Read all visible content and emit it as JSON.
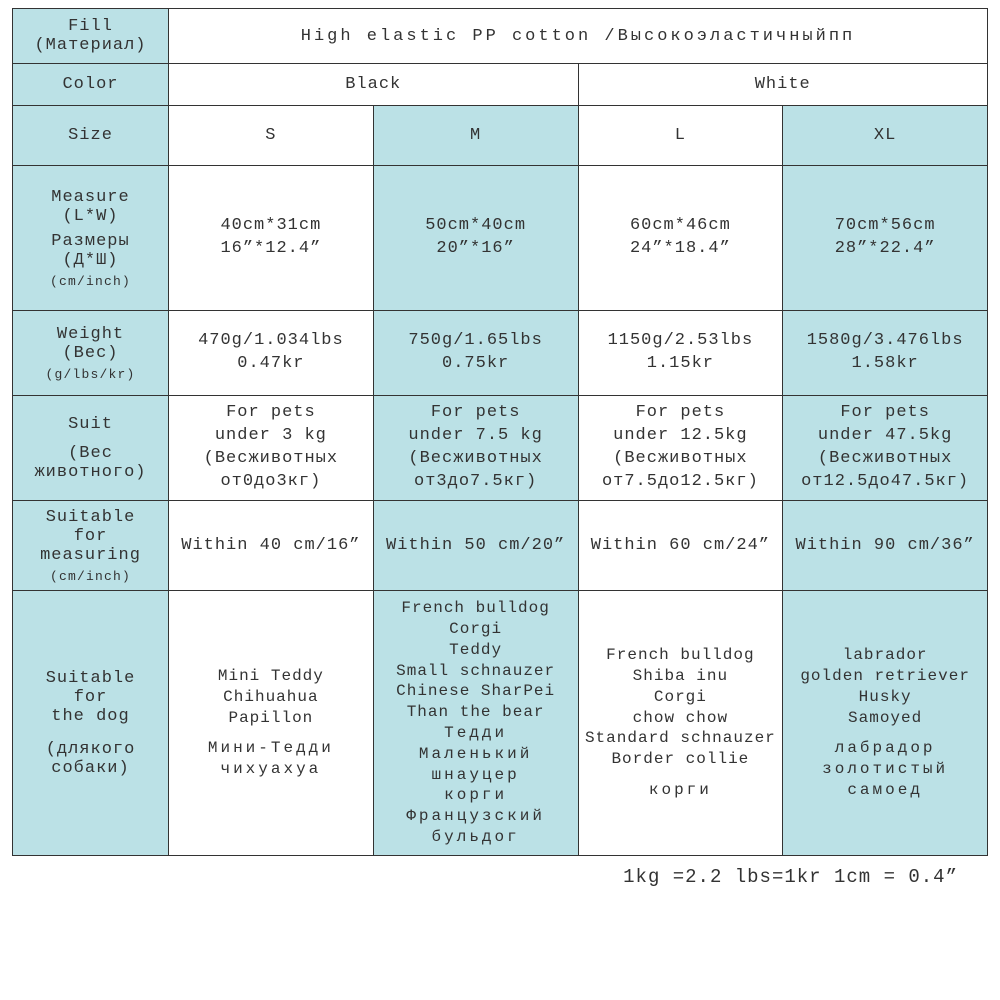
{
  "colors": {
    "header_bg": "#bbe1e6",
    "cell_bg": "#ffffff",
    "border": "#333333",
    "text": "#333333"
  },
  "footer": "1kg =2.2 lbs=1kr  1cm = 0.4”",
  "rows": {
    "fill": {
      "label_en": "Fill",
      "label_ru": "(Материал)",
      "value": "High elastic PP cotton /Высокоэластичныйпп"
    },
    "color": {
      "label": "Color",
      "values": [
        "Black",
        "White"
      ]
    },
    "size": {
      "label": "Size",
      "values": [
        "S",
        "M",
        "L",
        "XL"
      ]
    },
    "measure": {
      "label_l1": "Measure",
      "label_l2": "(L*W)",
      "label_l3": "Размеры",
      "label_l4": "(Д*Ш)",
      "label_unit": "(cm/inch)",
      "cells": [
        {
          "cm": "40cm*31cm",
          "in": "16”*12.4”"
        },
        {
          "cm": "50cm*40cm",
          "in": "20”*16”"
        },
        {
          "cm": "60cm*46cm",
          "in": "24”*18.4”"
        },
        {
          "cm": "70cm*56cm",
          "in": "28”*22.4”"
        }
      ]
    },
    "weight": {
      "label_l1": "Weight",
      "label_l2": "(Вес)",
      "label_unit": "(g/lbs/kr)",
      "cells": [
        {
          "a": "470g/1.034lbs",
          "b": "0.47kr"
        },
        {
          "a": "750g/1.65lbs",
          "b": "0.75kr"
        },
        {
          "a": "1150g/2.53lbs",
          "b": "1.15kr"
        },
        {
          "a": "1580g/3.476lbs",
          "b": "1.58kr"
        }
      ]
    },
    "suit": {
      "label_l1": "Suit",
      "label_l2": "(Вес",
      "label_l3": "животного)",
      "cells": [
        {
          "a": "For pets",
          "b": "under 3 kg",
          "c": "(Весживотных",
          "d": "от0до3кг)"
        },
        {
          "a": "For pets",
          "b": "under 7.5 kg",
          "c": "(Весживотных",
          "d": "от3до7.5кг)"
        },
        {
          "a": "For pets",
          "b": "under 12.5kg",
          "c": "(Весживотных",
          "d": "от7.5до12.5кг)"
        },
        {
          "a": "For pets",
          "b": "under 47.5kg",
          "c": "(Весживотных",
          "d": "от12.5до47.5кг)"
        }
      ]
    },
    "sfm": {
      "label_l1": "Suitable",
      "label_l2": "for",
      "label_l3": "measuring",
      "label_unit": "(cm/inch)",
      "values": [
        "Within 40 cm/16”",
        "Within 50 cm/20”",
        "Within 60 cm/24”",
        "Within 90 cm/36”"
      ]
    },
    "dogs": {
      "label_l1": "Suitable",
      "label_l2": "for",
      "label_l3": "the dog",
      "label_l4": "(длякого",
      "label_l5": "собаки)",
      "cells": [
        [
          "Mini Teddy",
          "Chihuahua",
          "Papillon",
          "",
          "Мини-Тедди",
          "чихуахуа"
        ],
        [
          "French bulldog",
          "Corgi",
          "Teddy",
          "Small schnauzer",
          "Chinese SharPei",
          "Than the bear",
          "Тедди",
          "Маленький",
          "шнауцер",
          "корги",
          "Французский",
          "бульдог"
        ],
        [
          "French bulldog",
          "Shiba inu",
          "Corgi",
          "chow chow",
          "Standard schnauzer",
          "Border collie",
          "",
          "корги"
        ],
        [
          "labrador",
          "golden retriever",
          "Husky",
          "Samoyed",
          "",
          "лабрадор",
          "золотистый",
          "самоед"
        ]
      ]
    }
  }
}
